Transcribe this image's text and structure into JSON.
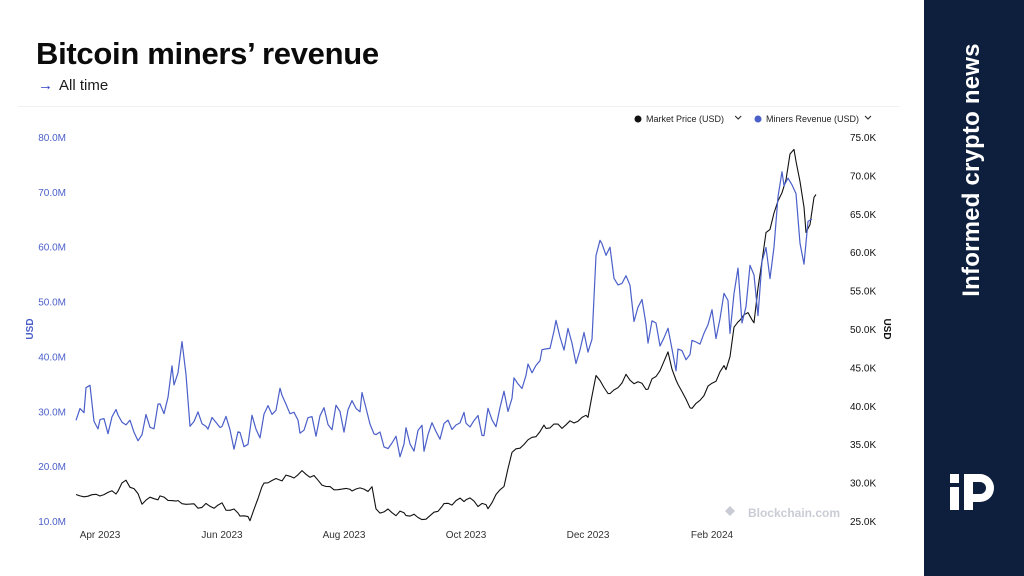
{
  "header": {
    "title": "Bitcoin miners’ revenue",
    "subtitle_arrow": "→",
    "subtitle": "All time"
  },
  "side_panel": {
    "tagline": "Informed crypto news",
    "logo_icon": "publisher-logo-icon",
    "background": "#0e1f3d"
  },
  "chart_data": {
    "type": "line",
    "watermark": "Blockchain.com",
    "grid": false,
    "legend_position": "top-right",
    "x": {
      "type": "date",
      "start": "2023-03-20",
      "end": "2024-03-31",
      "tick_labels": [
        "Apr 2023",
        "Jun 2023",
        "Aug 2023",
        "Oct 2023",
        "Dec 2023",
        "Feb 2024"
      ],
      "tick_dates": [
        "2023-04-01",
        "2023-06-01",
        "2023-08-01",
        "2023-10-01",
        "2023-12-01",
        "2024-02-01"
      ]
    },
    "y_left": {
      "label": "USD",
      "range": [
        10000000,
        80000000
      ],
      "ticks": [
        10000000,
        20000000,
        30000000,
        40000000,
        50000000,
        60000000,
        70000000,
        80000000
      ],
      "tick_labels": [
        "10.0M",
        "20.0M",
        "30.0M",
        "40.0M",
        "50.0M",
        "60.0M",
        "70.0M",
        "80.0M"
      ],
      "color": "#4b5fc9"
    },
    "y_right": {
      "label": "USD",
      "range": [
        25000,
        75000
      ],
      "ticks": [
        25000,
        30000,
        35000,
        40000,
        45000,
        50000,
        55000,
        60000,
        65000,
        70000,
        75000
      ],
      "tick_labels": [
        "25.0K",
        "30.0K",
        "35.0K",
        "40.0K",
        "45.0K",
        "50.0K",
        "55.0K",
        "60.0K",
        "65.0K",
        "70.0K",
        "75.0K"
      ],
      "color": "#111111"
    },
    "series": [
      {
        "name": "Market Price (USD)",
        "axis": "right",
        "color": "#111111",
        "legend_marker": "#111111",
        "points": [
          [
            "2023-03-20",
            28200
          ],
          [
            "2023-04-01",
            28400
          ],
          [
            "2023-04-10",
            28900
          ],
          [
            "2023-04-14",
            30400
          ],
          [
            "2023-04-22",
            27600
          ],
          [
            "2023-05-01",
            28100
          ],
          [
            "2023-05-10",
            27500
          ],
          [
            "2023-05-20",
            26900
          ],
          [
            "2023-06-01",
            27000
          ],
          [
            "2023-06-10",
            25900
          ],
          [
            "2023-06-15",
            25200
          ],
          [
            "2023-06-22",
            30000
          ],
          [
            "2023-07-01",
            30500
          ],
          [
            "2023-07-13",
            31300
          ],
          [
            "2023-07-25",
            29200
          ],
          [
            "2023-08-05",
            29100
          ],
          [
            "2023-08-15",
            29200
          ],
          [
            "2023-08-17",
            26400
          ],
          [
            "2023-09-01",
            25900
          ],
          [
            "2023-09-11",
            25200
          ],
          [
            "2023-09-20",
            27100
          ],
          [
            "2023-10-01",
            27900
          ],
          [
            "2023-10-12",
            26800
          ],
          [
            "2023-10-20",
            29700
          ],
          [
            "2023-10-24",
            33900
          ],
          [
            "2023-11-01",
            35400
          ],
          [
            "2023-11-10",
            37300
          ],
          [
            "2023-11-20",
            37500
          ],
          [
            "2023-12-01",
            38700
          ],
          [
            "2023-12-05",
            43900
          ],
          [
            "2023-12-12",
            41400
          ],
          [
            "2023-12-20",
            43700
          ],
          [
            "2023-12-31",
            42300
          ],
          [
            "2024-01-10",
            46400
          ],
          [
            "2024-01-15",
            42700
          ],
          [
            "2024-01-22",
            39500
          ],
          [
            "2024-02-01",
            42900
          ],
          [
            "2024-02-08",
            45300
          ],
          [
            "2024-02-15",
            51900
          ],
          [
            "2024-02-22",
            51300
          ],
          [
            "2024-02-28",
            62400
          ],
          [
            "2024-03-05",
            66100
          ],
          [
            "2024-03-11",
            72100
          ],
          [
            "2024-03-14",
            73100
          ],
          [
            "2024-03-19",
            62900
          ],
          [
            "2024-03-24",
            67100
          ]
        ]
      },
      {
        "name": "Miners Revenue (USD)",
        "axis": "left",
        "color": "#4b5fc9",
        "legend_marker": "#4b5fc9",
        "points": [
          [
            "2023-03-20",
            26500
          ],
          [
            "2023-03-25",
            34000
          ],
          [
            "2023-04-01",
            27000
          ],
          [
            "2023-04-10",
            29500
          ],
          [
            "2023-04-20",
            25500
          ],
          [
            "2023-05-01",
            30000
          ],
          [
            "2023-05-08",
            36000
          ],
          [
            "2023-05-12",
            41500
          ],
          [
            "2023-05-16",
            29000
          ],
          [
            "2023-05-25",
            27500
          ],
          [
            "2023-06-01",
            28000
          ],
          [
            "2023-06-10",
            24500
          ],
          [
            "2023-06-20",
            27500
          ],
          [
            "2023-07-01",
            33000
          ],
          [
            "2023-07-10",
            27000
          ],
          [
            "2023-07-20",
            28500
          ],
          [
            "2023-08-01",
            29000
          ],
          [
            "2023-08-10",
            32000
          ],
          [
            "2023-08-17",
            25500
          ],
          [
            "2023-08-25",
            23500
          ],
          [
            "2023-09-01",
            24500
          ],
          [
            "2023-09-10",
            25500
          ],
          [
            "2023-09-20",
            27000
          ],
          [
            "2023-10-01",
            28500
          ],
          [
            "2023-10-10",
            27000
          ],
          [
            "2023-10-20",
            31000
          ],
          [
            "2023-10-25",
            34000
          ],
          [
            "2023-11-01",
            37000
          ],
          [
            "2023-11-08",
            40000
          ],
          [
            "2023-11-15",
            45000
          ],
          [
            "2023-11-25",
            41000
          ],
          [
            "2023-12-01",
            42000
          ],
          [
            "2023-12-05",
            53500
          ],
          [
            "2023-12-08",
            63500
          ],
          [
            "2023-12-12",
            56000
          ],
          [
            "2023-12-20",
            53000
          ],
          [
            "2023-12-31",
            45000
          ],
          [
            "2024-01-08",
            44000
          ],
          [
            "2024-01-15",
            39500
          ],
          [
            "2024-01-22",
            41500
          ],
          [
            "2024-02-01",
            46000
          ],
          [
            "2024-02-10",
            49500
          ],
          [
            "2024-02-20",
            52000
          ],
          [
            "2024-03-01",
            57000
          ],
          [
            "2024-03-05",
            67000
          ],
          [
            "2024-03-08",
            74000
          ],
          [
            "2024-03-12",
            71000
          ],
          [
            "2024-03-18",
            59000
          ],
          [
            "2024-03-22",
            63500
          ]
        ]
      }
    ]
  }
}
